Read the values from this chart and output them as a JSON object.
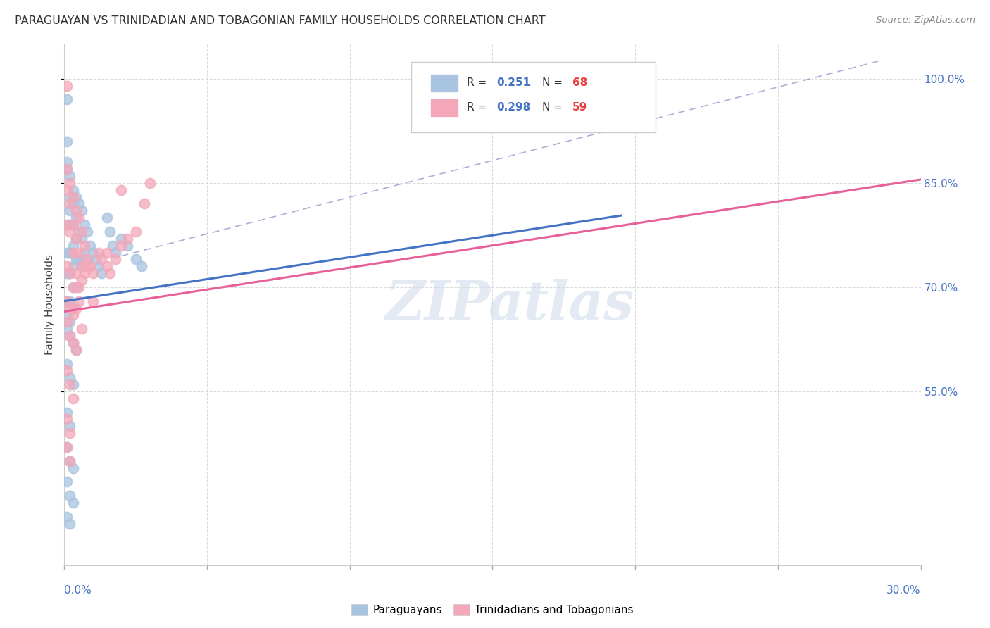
{
  "title": "PARAGUAYAN VS TRINIDADIAN AND TOBAGONIAN FAMILY HOUSEHOLDS CORRELATION CHART",
  "source": "Source: ZipAtlas.com",
  "ylabel": "Family Households",
  "ylabel_right_ticks": [
    "100.0%",
    "85.0%",
    "70.0%",
    "55.0%"
  ],
  "ylabel_right_vals": [
    1.0,
    0.85,
    0.7,
    0.55
  ],
  "paraguayan_color": "#a8c4e0",
  "trinidadian_color": "#f4a7b9",
  "trendline1_color": "#4472c4",
  "trendline2_color": "#e8609a",
  "diagonal_color": "#9999cc",
  "watermark_text": "ZIPatlas",
  "background_color": "#ffffff",
  "x_min": 0.0,
  "x_max": 0.3,
  "y_min": 0.3,
  "y_max": 1.05,
  "paraguayan_x": [
    0.001,
    0.001,
    0.001,
    0.001,
    0.001,
    0.001,
    0.001,
    0.001,
    0.002,
    0.002,
    0.002,
    0.002,
    0.002,
    0.002,
    0.002,
    0.002,
    0.003,
    0.003,
    0.003,
    0.003,
    0.003,
    0.003,
    0.003,
    0.004,
    0.004,
    0.004,
    0.004,
    0.004,
    0.005,
    0.005,
    0.005,
    0.006,
    0.006,
    0.006,
    0.007,
    0.007,
    0.008,
    0.008,
    0.009,
    0.01,
    0.011,
    0.012,
    0.013,
    0.015,
    0.016,
    0.017,
    0.018,
    0.02,
    0.022,
    0.025,
    0.027,
    0.001,
    0.002,
    0.003,
    0.004,
    0.001,
    0.002,
    0.003,
    0.001,
    0.002,
    0.001,
    0.002,
    0.003,
    0.001,
    0.002,
    0.003,
    0.001,
    0.002
  ],
  "paraguayan_y": [
    0.97,
    0.91,
    0.88,
    0.87,
    0.75,
    0.72,
    0.68,
    0.66,
    0.86,
    0.83,
    0.81,
    0.79,
    0.75,
    0.72,
    0.68,
    0.65,
    0.84,
    0.82,
    0.79,
    0.76,
    0.73,
    0.7,
    0.67,
    0.83,
    0.8,
    0.77,
    0.74,
    0.7,
    0.82,
    0.78,
    0.74,
    0.81,
    0.77,
    0.73,
    0.79,
    0.75,
    0.78,
    0.74,
    0.76,
    0.75,
    0.74,
    0.73,
    0.72,
    0.8,
    0.78,
    0.76,
    0.75,
    0.77,
    0.76,
    0.74,
    0.73,
    0.64,
    0.63,
    0.62,
    0.61,
    0.59,
    0.57,
    0.56,
    0.52,
    0.5,
    0.47,
    0.45,
    0.44,
    0.42,
    0.4,
    0.39,
    0.37,
    0.36
  ],
  "trinidadian_x": [
    0.001,
    0.001,
    0.001,
    0.001,
    0.001,
    0.001,
    0.002,
    0.002,
    0.002,
    0.002,
    0.002,
    0.003,
    0.003,
    0.003,
    0.003,
    0.004,
    0.004,
    0.004,
    0.005,
    0.005,
    0.006,
    0.006,
    0.007,
    0.008,
    0.009,
    0.01,
    0.012,
    0.013,
    0.015,
    0.016,
    0.018,
    0.02,
    0.022,
    0.025,
    0.028,
    0.03,
    0.001,
    0.002,
    0.003,
    0.004,
    0.001,
    0.002,
    0.003,
    0.001,
    0.002,
    0.001,
    0.002,
    0.01,
    0.015,
    0.02,
    0.005,
    0.006,
    0.007,
    0.008,
    0.003,
    0.004,
    0.005,
    0.006
  ],
  "trinidadian_y": [
    0.99,
    0.87,
    0.84,
    0.79,
    0.73,
    0.68,
    0.85,
    0.82,
    0.78,
    0.72,
    0.67,
    0.83,
    0.79,
    0.75,
    0.7,
    0.81,
    0.77,
    0.72,
    0.8,
    0.75,
    0.78,
    0.73,
    0.76,
    0.74,
    0.73,
    0.72,
    0.75,
    0.74,
    0.73,
    0.72,
    0.74,
    0.76,
    0.77,
    0.78,
    0.82,
    0.85,
    0.65,
    0.63,
    0.62,
    0.61,
    0.58,
    0.56,
    0.54,
    0.51,
    0.49,
    0.47,
    0.45,
    0.68,
    0.75,
    0.84,
    0.7,
    0.71,
    0.72,
    0.73,
    0.66,
    0.67,
    0.68,
    0.64
  ]
}
